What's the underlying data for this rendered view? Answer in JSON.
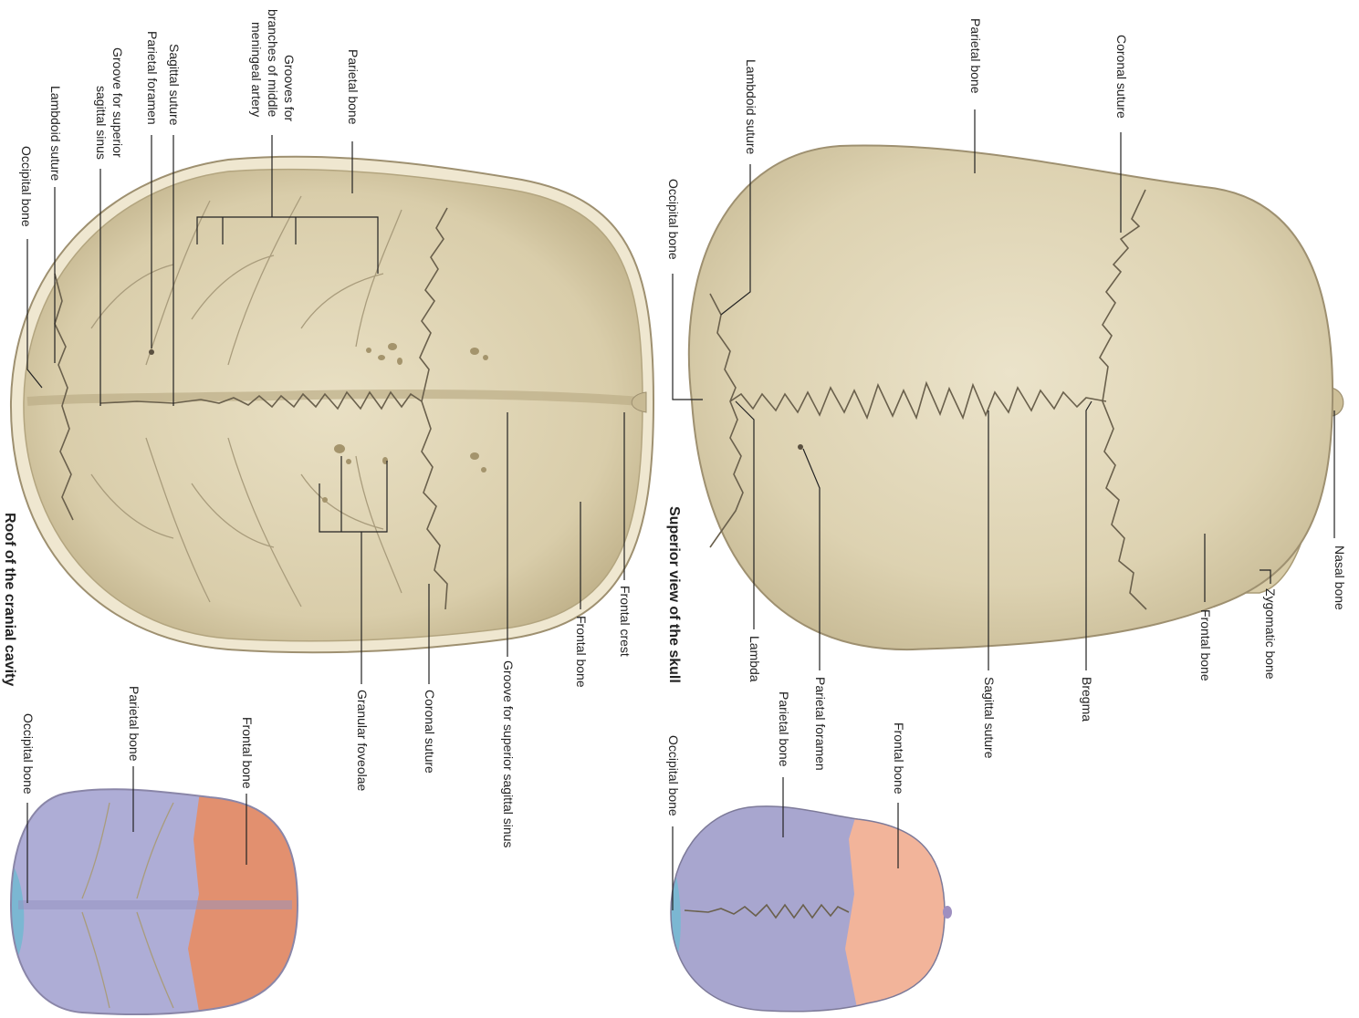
{
  "titles": {
    "superior_view": "Superior view of the skull",
    "roof": "Roof of the cranial cavity"
  },
  "superior_labels": {
    "nasal_bone": "Nasal bone",
    "zygomatic_bone": "Zygomatic bone",
    "frontal_bone": "Frontal bone",
    "bregma": "Bregma",
    "sagittal_suture": "Sagittal suture",
    "parietal_foramen": "Parietal foramen",
    "lambda": "Lambda",
    "coronal_suture": "Coronal suture",
    "parietal_bone": "Parietal bone",
    "lambdoid_suture": "Lambdoid suture",
    "occipital_bone": "Occipital bone"
  },
  "roof_labels": {
    "parietal_bone": "Parietal bone",
    "grooves_line1": "Grooves for",
    "grooves_line2": "branches of middle",
    "grooves_line3": "meningeal artery",
    "sagittal_suture": "Sagittal suture",
    "parietal_foramen": "Parietal foramen",
    "groove_sinus_line1": "Groove for superior",
    "groove_sinus_line2": "sagittal sinus",
    "lambdoid_suture": "Lambdoid suture",
    "occipital_bone": "Occipital bone",
    "frontal_crest": "Frontal crest",
    "frontal_bone": "Frontal bone",
    "groove_superior_sagittal_sinus": "Groove for superior sagittal sinus",
    "coronal_suture": "Coronal suture",
    "granular_foveolae": "Granular foveolae"
  },
  "small_superior_labels": {
    "frontal_bone": "Frontal bone",
    "parietal_bone": "Parietal bone",
    "occipital_bone": "Occipital bone"
  },
  "small_roof_labels": {
    "frontal_bone": "Frontal bone",
    "parietal_bone": "Parietal bone",
    "occipital_bone": "Occipital bone"
  },
  "colors": {
    "bone": "#e3d9bd",
    "bone_dark": "#cfc39f",
    "frontal_region": "#e8a186",
    "parietal_region": "#a9a7cf",
    "occipital_region": "#7bb7d2"
  }
}
